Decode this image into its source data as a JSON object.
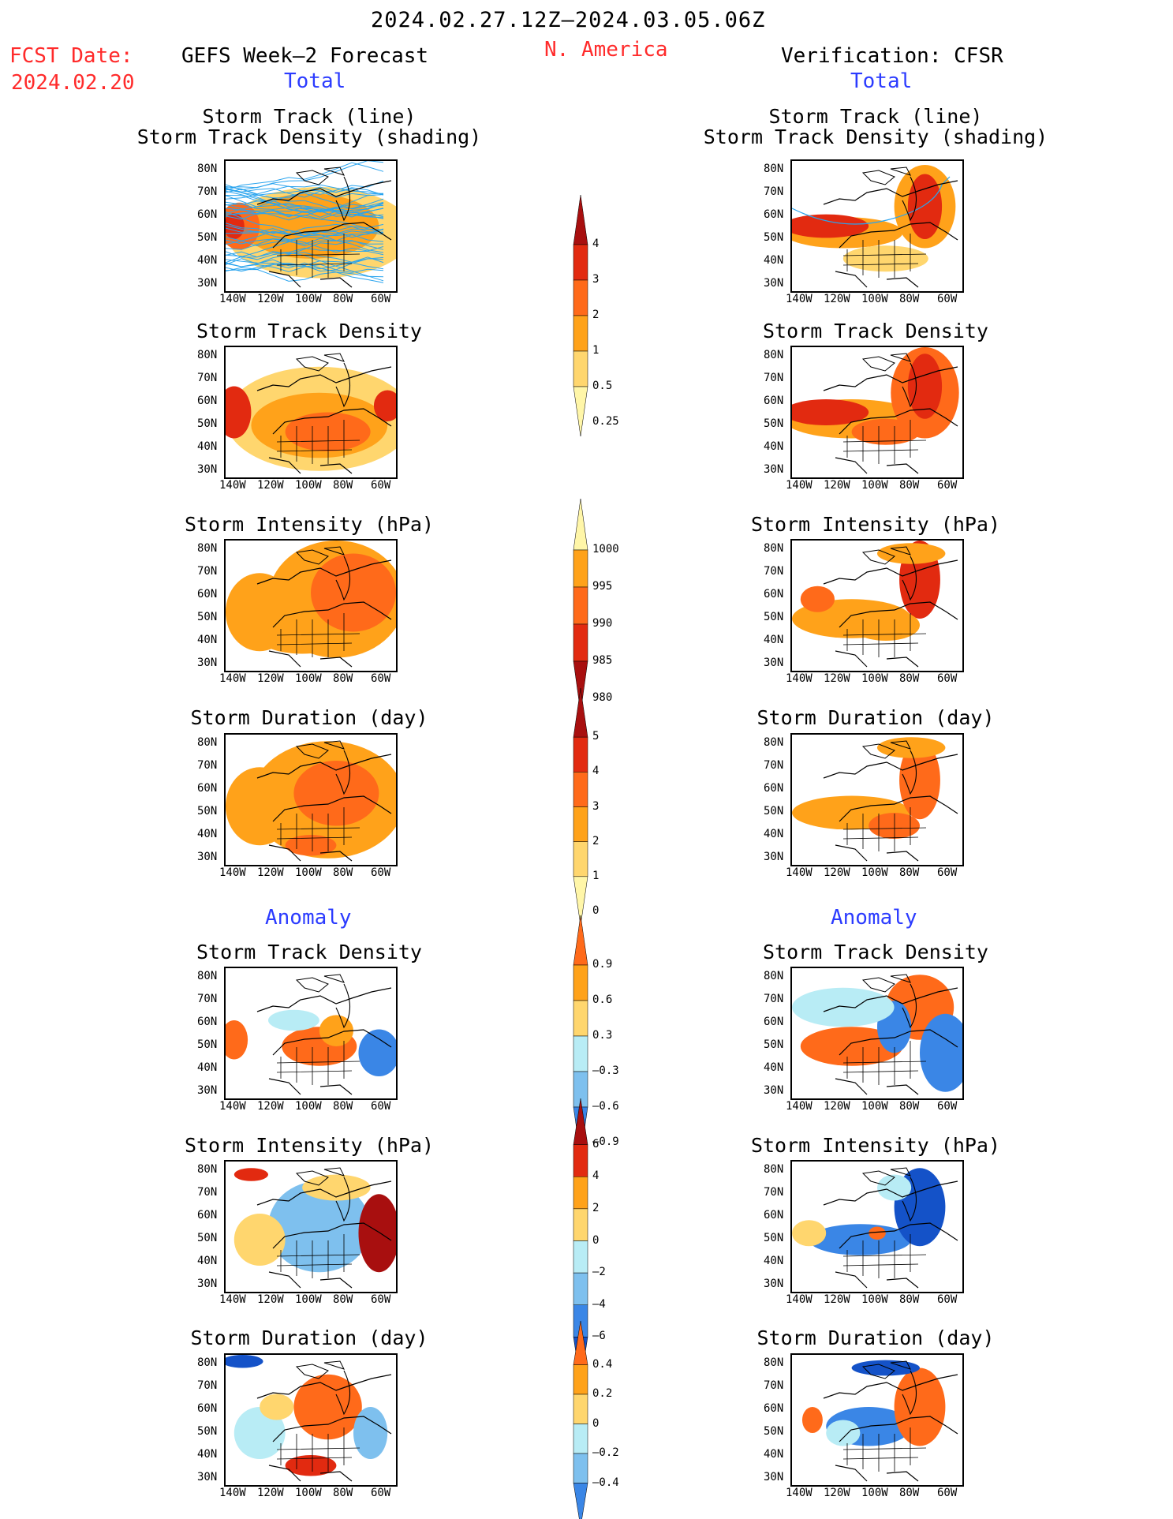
{
  "header": {
    "date_range": "2024.02.27.12Z–2024.03.05.06Z",
    "fcst_label": "FCST Date:",
    "fcst_date": "2024.02.20",
    "left_title": "GEFS Week–2 Forecast",
    "region": "N. America",
    "right_title": "Verification: CFSR",
    "total_label": "Total",
    "anomaly_label": "Anomaly"
  },
  "panel_titles": {
    "track_line": "Storm Track (line)",
    "track_density_shading": "Storm Track Density (shading)",
    "track_density": "Storm Track Density",
    "intensity": "Storm Intensity (hPa)",
    "duration": "Storm Duration (day)"
  },
  "axes": {
    "lat_ticks": [
      "80N",
      "70N",
      "60N",
      "50N",
      "40N",
      "30N"
    ],
    "lon_ticks": [
      "140W",
      "120W",
      "100W",
      "80W",
      "60W"
    ]
  },
  "colors": {
    "header_red": "#ff2b2b",
    "header_blue": "#2b3bff",
    "pale_yellow": "#fff6a8",
    "light_orange": "#ffd66e",
    "orange": "#ffa21a",
    "dark_orange": "#ff6a1a",
    "red": "#e22a10",
    "dark_red": "#a80f0f",
    "light_blue": "#b8ecf5",
    "mid_blue": "#7ec0ee",
    "blue": "#3a86e6",
    "dark_blue": "#1452c8",
    "track_line": "#2aa4ee"
  },
  "chart_data": [
    {
      "type": "heatmap",
      "name": "colorbar-total-density",
      "levels": [
        "0.25",
        "0.5",
        "1",
        "2",
        "3",
        "4"
      ],
      "colors": [
        "#fff6a8",
        "#ffd66e",
        "#ffa21a",
        "#ff6a1a",
        "#e22a10",
        "#a80f0f"
      ]
    },
    {
      "type": "heatmap",
      "name": "colorbar-total-intensity",
      "levels": [
        "1000",
        "995",
        "990",
        "985",
        "980"
      ],
      "colors": [
        "#fff6a8",
        "#ffa21a",
        "#ff6a1a",
        "#e22a10",
        "#a80f0f"
      ]
    },
    {
      "type": "heatmap",
      "name": "colorbar-total-duration",
      "levels": [
        "0",
        "1",
        "2",
        "3",
        "4",
        "5"
      ],
      "colors": [
        "#fff6a8",
        "#ffd66e",
        "#ffa21a",
        "#ff6a1a",
        "#e22a10",
        "#a80f0f"
      ]
    },
    {
      "type": "heatmap",
      "name": "colorbar-anomaly-density",
      "levels": [
        "0.9",
        "0.6",
        "0.3",
        "–0.3",
        "–0.6",
        "–0.9"
      ],
      "colors": [
        "#ff6a1a",
        "#ffa21a",
        "#ffd66e",
        "#b8ecf5",
        "#7ec0ee",
        "#3a86e6"
      ]
    },
    {
      "type": "heatmap",
      "name": "colorbar-anomaly-intensity",
      "levels": [
        "6",
        "4",
        "2",
        "0",
        "–2",
        "–4",
        "–6"
      ],
      "colors": [
        "#a80f0f",
        "#e22a10",
        "#ffa21a",
        "#ffd66e",
        "#b8ecf5",
        "#7ec0ee",
        "#3a86e6",
        "#1452c8"
      ]
    },
    {
      "type": "heatmap",
      "name": "colorbar-anomaly-duration",
      "levels": [
        "0.4",
        "0.2",
        "0",
        "–0.2",
        "–0.4"
      ],
      "colors": [
        "#ff6a1a",
        "#ffa21a",
        "#ffd66e",
        "#b8ecf5",
        "#7ec0ee",
        "#3a86e6"
      ]
    }
  ]
}
